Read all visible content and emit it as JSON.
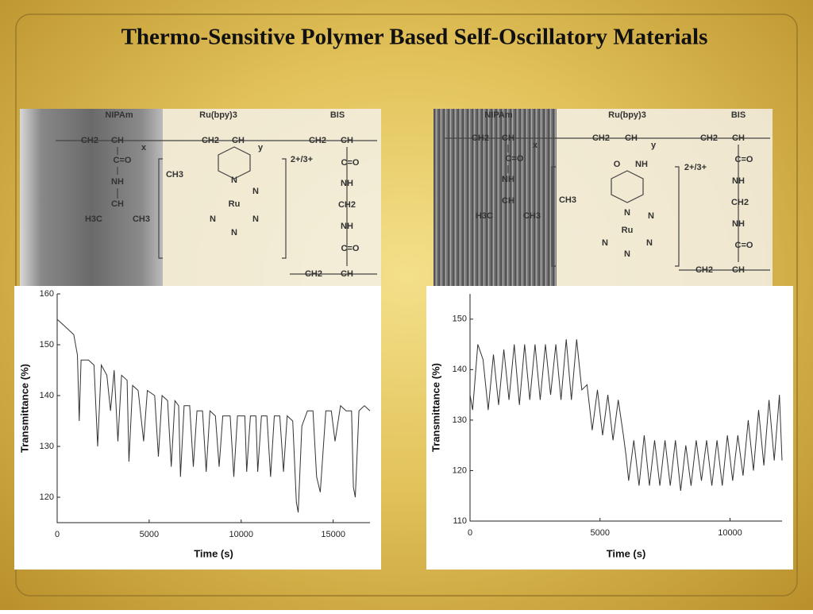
{
  "title": "Thermo-Sensitive Polymer Based Self-Oscillatory Materials",
  "structures": [
    {
      "labels": [
        "NIPAm",
        "Ru(bpy)3",
        "BIS",
        "CH2",
        "CH",
        "x",
        "CH2",
        "CH",
        "y",
        "CH2",
        "CH",
        "C=O",
        "NH",
        "CH",
        "H3C",
        "CH3",
        "2+/3+",
        "CH3",
        "Ru",
        "N",
        "N",
        "N",
        "N",
        "N",
        "C=O",
        "NH",
        "CH2",
        "NH",
        "C=O",
        "CH2",
        "CH"
      ]
    },
    {
      "labels": [
        "NIPAm",
        "Ru(bpy)3",
        "BIS",
        "CH2",
        "CH",
        "x",
        "CH2",
        "CH",
        "y",
        "CH2",
        "CH",
        "C=O",
        "NH",
        "CH",
        "H3C",
        "CH3",
        "O",
        "NH",
        "2+/3+",
        "C=O",
        "NH",
        "CH2",
        "NH",
        "C=O",
        "CH3",
        "Ru",
        "N",
        "N",
        "N",
        "N",
        "N",
        "CH2",
        "CH"
      ]
    }
  ],
  "chart_data": [
    {
      "type": "line",
      "x_label": "Time (s)",
      "y_label": "Transmittance (%)",
      "xlim": [
        0,
        17000
      ],
      "ylim": [
        115,
        160
      ],
      "xticks": [
        0,
        5000,
        10000,
        15000
      ],
      "yticks": [
        120,
        130,
        140,
        150,
        160
      ],
      "grid": false,
      "series": [
        {
          "color": "#333333",
          "x": [
            0,
            300,
            600,
            900,
            1100,
            1200,
            1300,
            1700,
            2000,
            2200,
            2400,
            2700,
            2900,
            3100,
            3300,
            3500,
            3800,
            3900,
            4100,
            4400,
            4700,
            4900,
            5300,
            5500,
            5700,
            6000,
            6200,
            6400,
            6600,
            6700,
            6900,
            7200,
            7400,
            7600,
            7900,
            8100,
            8300,
            8600,
            8800,
            9000,
            9400,
            9600,
            9800,
            10200,
            10300,
            10500,
            10800,
            10900,
            11100,
            11400,
            11600,
            11800,
            12100,
            12300,
            12500,
            12800,
            13000,
            13100,
            13300,
            13600,
            13900,
            14100,
            14300,
            14600,
            14900,
            15100,
            15400,
            15700,
            16000,
            16100,
            16200,
            16400,
            16700,
            17000
          ],
          "values": [
            155,
            154,
            153,
            152,
            148,
            135,
            147,
            147,
            146,
            130,
            146,
            144,
            137,
            145,
            131,
            144,
            143,
            127,
            142,
            141,
            131,
            141,
            140,
            128,
            140,
            139,
            126,
            139,
            138,
            124,
            138,
            138,
            126,
            137,
            137,
            125,
            137,
            136,
            126,
            136,
            136,
            124,
            136,
            136,
            125,
            136,
            136,
            125,
            136,
            136,
            124,
            136,
            136,
            125,
            136,
            135,
            119,
            117,
            134,
            137,
            137,
            124,
            121,
            137,
            137,
            131,
            138,
            137,
            137,
            122,
            120,
            137,
            138,
            137
          ]
        }
      ]
    },
    {
      "type": "line",
      "x_label": "Time (s)",
      "y_label": "Transmittance (%)",
      "xlim": [
        0,
        12000
      ],
      "ylim": [
        110,
        155
      ],
      "xticks": [
        0,
        5000,
        10000
      ],
      "yticks": [
        110,
        120,
        130,
        140,
        150
      ],
      "grid": false,
      "series": [
        {
          "color": "#333333",
          "x": [
            0,
            100,
            300,
            500,
            700,
            900,
            1100,
            1300,
            1500,
            1700,
            1900,
            2100,
            2300,
            2500,
            2700,
            2900,
            3100,
            3300,
            3500,
            3700,
            3900,
            4100,
            4300,
            4500,
            4700,
            4900,
            5100,
            5300,
            5500,
            5700,
            5900,
            6000,
            6100,
            6300,
            6500,
            6700,
            6900,
            7100,
            7300,
            7500,
            7700,
            7900,
            8100,
            8300,
            8500,
            8700,
            8900,
            9100,
            9300,
            9500,
            9700,
            9900,
            10100,
            10300,
            10500,
            10700,
            10900,
            11100,
            11300,
            11500,
            11700,
            11900,
            12000
          ],
          "values": [
            135,
            132,
            145,
            142,
            132,
            143,
            133,
            144,
            134,
            145,
            133,
            145,
            134,
            145,
            134,
            145,
            135,
            145,
            134,
            146,
            134,
            146,
            136,
            137,
            128,
            136,
            127,
            135,
            126,
            134,
            127,
            123,
            118,
            126,
            117,
            127,
            117,
            126,
            117,
            126,
            117,
            126,
            116,
            125,
            117,
            126,
            118,
            126,
            117,
            126,
            117,
            127,
            118,
            127,
            119,
            130,
            120,
            132,
            121,
            134,
            122,
            135,
            122
          ]
        }
      ]
    }
  ]
}
